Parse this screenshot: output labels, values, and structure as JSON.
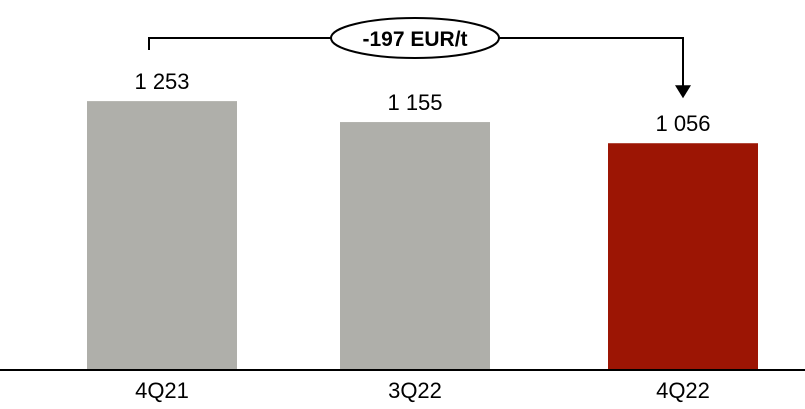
{
  "chart_data": {
    "type": "bar",
    "categories": [
      "4Q21",
      "3Q22",
      "4Q22"
    ],
    "values": [
      1253,
      1155,
      1056
    ],
    "value_labels": [
      "1 253",
      "1 155",
      "1 056"
    ],
    "title": "",
    "xlabel": "",
    "ylabel": "",
    "ylim": [
      0,
      1400
    ],
    "grid": false,
    "legend": "none",
    "colors": {
      "bar_default": "#afafaa",
      "bar_highlight": "#9c1504",
      "axis": "#000000",
      "connector": "#000000"
    },
    "highlight_index": 2,
    "annotation": {
      "text": "-197 EUR/t",
      "from_index": 0,
      "to_index": 2
    }
  }
}
